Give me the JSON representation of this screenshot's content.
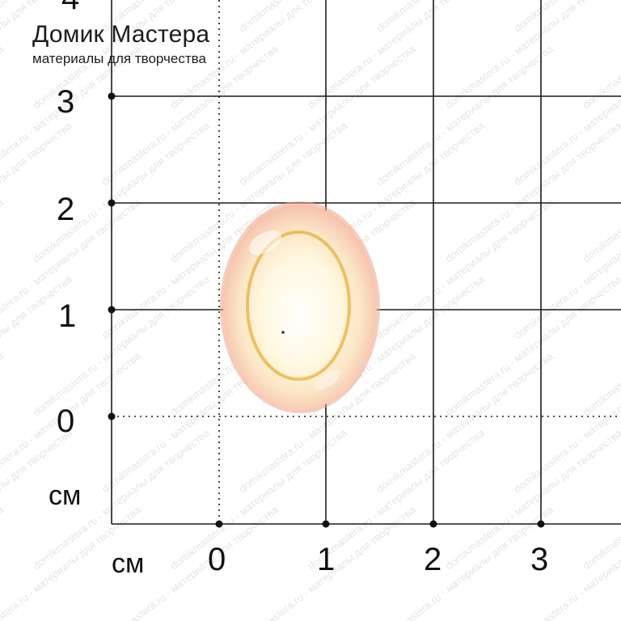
{
  "brand": {
    "title": "Домик Мастера",
    "subtitle": "материалы для творчества"
  },
  "watermark": {
    "text": "domikmastera.ru - материалы для творчества"
  },
  "axes": {
    "y_ticks": [
      "4",
      "3",
      "2",
      "1",
      "0"
    ],
    "x_ticks": [
      "0",
      "1",
      "2",
      "3"
    ],
    "y_unit": "см",
    "x_unit": "см"
  },
  "colors": {
    "grid": "#1a1a1a",
    "background": "#ffffff",
    "cabochon_rim": "#f2a98f",
    "cabochon_center": "#fffbe8",
    "cabochon_amber": "#e8b640",
    "watermark": "#cfcfcf"
  }
}
